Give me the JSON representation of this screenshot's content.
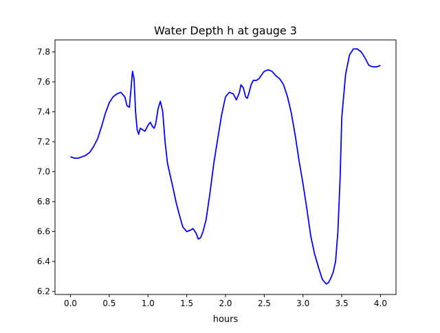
{
  "chart_data": {
    "type": "line",
    "title": "Water Depth h at gauge 3",
    "xlabel": "hours",
    "ylabel": "",
    "xlim": [
      -0.2,
      4.2
    ],
    "ylim": [
      6.18,
      7.88
    ],
    "x_ticks": [
      0.0,
      0.5,
      1.0,
      1.5,
      2.0,
      2.5,
      3.0,
      3.5,
      4.0
    ],
    "y_ticks": [
      6.2,
      6.4,
      6.6,
      6.8,
      7.0,
      7.2,
      7.4,
      7.6,
      7.8
    ],
    "x_tick_labels": [
      "0.0",
      "0.5",
      "1.0",
      "1.5",
      "2.0",
      "2.5",
      "3.0",
      "3.5",
      "4.0"
    ],
    "y_tick_labels": [
      "6.2",
      "6.4",
      "6.6",
      "6.8",
      "7.0",
      "7.2",
      "7.4",
      "7.6",
      "7.8"
    ],
    "grid": false,
    "legend": "none",
    "series": [
      {
        "color": "#0000ff",
        "x": [
          0.0,
          0.05,
          0.1,
          0.15,
          0.2,
          0.25,
          0.3,
          0.35,
          0.4,
          0.45,
          0.5,
          0.55,
          0.6,
          0.65,
          0.7,
          0.73,
          0.76,
          0.78,
          0.8,
          0.82,
          0.84,
          0.86,
          0.88,
          0.9,
          0.93,
          0.96,
          1.0,
          1.03,
          1.06,
          1.08,
          1.1,
          1.13,
          1.16,
          1.19,
          1.22,
          1.25,
          1.28,
          1.32,
          1.36,
          1.4,
          1.45,
          1.5,
          1.55,
          1.58,
          1.62,
          1.65,
          1.68,
          1.71,
          1.75,
          1.8,
          1.85,
          1.9,
          1.95,
          2.0,
          2.05,
          2.1,
          2.14,
          2.18,
          2.2,
          2.23,
          2.26,
          2.28,
          2.3,
          2.33,
          2.36,
          2.4,
          2.43,
          2.47,
          2.5,
          2.55,
          2.6,
          2.65,
          2.7,
          2.75,
          2.8,
          2.85,
          2.9,
          2.95,
          3.0,
          3.05,
          3.1,
          3.15,
          3.2,
          3.25,
          3.3,
          3.33,
          3.36,
          3.39,
          3.42,
          3.45,
          3.48,
          3.5,
          3.55,
          3.6,
          3.65,
          3.7,
          3.75,
          3.8,
          3.85,
          3.9,
          3.95,
          4.0
        ],
        "y": [
          7.1,
          7.09,
          7.09,
          7.1,
          7.11,
          7.13,
          7.17,
          7.22,
          7.3,
          7.39,
          7.46,
          7.5,
          7.52,
          7.53,
          7.5,
          7.44,
          7.43,
          7.55,
          7.67,
          7.62,
          7.4,
          7.28,
          7.25,
          7.29,
          7.28,
          7.27,
          7.31,
          7.33,
          7.3,
          7.29,
          7.32,
          7.42,
          7.47,
          7.4,
          7.2,
          7.06,
          6.99,
          6.9,
          6.8,
          6.72,
          6.63,
          6.6,
          6.61,
          6.62,
          6.59,
          6.55,
          6.56,
          6.6,
          6.68,
          6.86,
          7.06,
          7.22,
          7.38,
          7.5,
          7.53,
          7.52,
          7.48,
          7.53,
          7.58,
          7.56,
          7.5,
          7.49,
          7.52,
          7.58,
          7.61,
          7.61,
          7.62,
          7.65,
          7.67,
          7.68,
          7.67,
          7.64,
          7.62,
          7.58,
          7.5,
          7.39,
          7.24,
          7.07,
          6.92,
          6.75,
          6.57,
          6.45,
          6.36,
          6.28,
          6.25,
          6.26,
          6.29,
          6.33,
          6.4,
          6.6,
          6.97,
          7.36,
          7.65,
          7.78,
          7.82,
          7.82,
          7.8,
          7.76,
          7.71,
          7.7,
          7.7,
          7.71
        ]
      }
    ]
  }
}
